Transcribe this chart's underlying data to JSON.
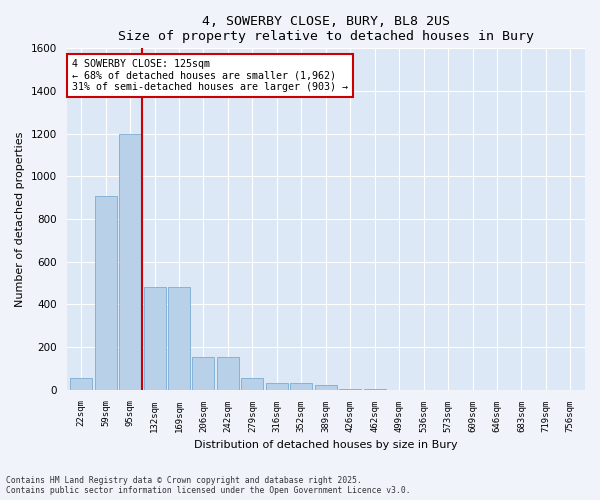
{
  "title1": "4, SOWERBY CLOSE, BURY, BL8 2US",
  "title2": "Size of property relative to detached houses in Bury",
  "xlabel": "Distribution of detached houses by size in Bury",
  "ylabel": "Number of detached properties",
  "bar_color": "#b8d0e8",
  "bar_edge_color": "#7aadd4",
  "background_color": "#dce8f5",
  "grid_color": "#ffffff",
  "fig_color": "#f0f4fa",
  "categories": [
    "22sqm",
    "59sqm",
    "95sqm",
    "132sqm",
    "169sqm",
    "206sqm",
    "242sqm",
    "279sqm",
    "316sqm",
    "352sqm",
    "389sqm",
    "426sqm",
    "462sqm",
    "499sqm",
    "536sqm",
    "573sqm",
    "609sqm",
    "646sqm",
    "683sqm",
    "719sqm",
    "756sqm"
  ],
  "values": [
    55,
    910,
    1200,
    480,
    480,
    155,
    155,
    55,
    30,
    30,
    20,
    5,
    5,
    0,
    0,
    0,
    0,
    0,
    0,
    0,
    0
  ],
  "ylim": [
    0,
    1600
  ],
  "yticks": [
    0,
    200,
    400,
    600,
    800,
    1000,
    1200,
    1400,
    1600
  ],
  "vline_xindex": 2.5,
  "vline_color": "#cc0000",
  "annotation_text": "4 SOWERBY CLOSE: 125sqm\n← 68% of detached houses are smaller (1,962)\n31% of semi-detached houses are larger (903) →",
  "annotation_box_color": "#cc0000",
  "footer1": "Contains HM Land Registry data © Crown copyright and database right 2025.",
  "footer2": "Contains public sector information licensed under the Open Government Licence v3.0."
}
